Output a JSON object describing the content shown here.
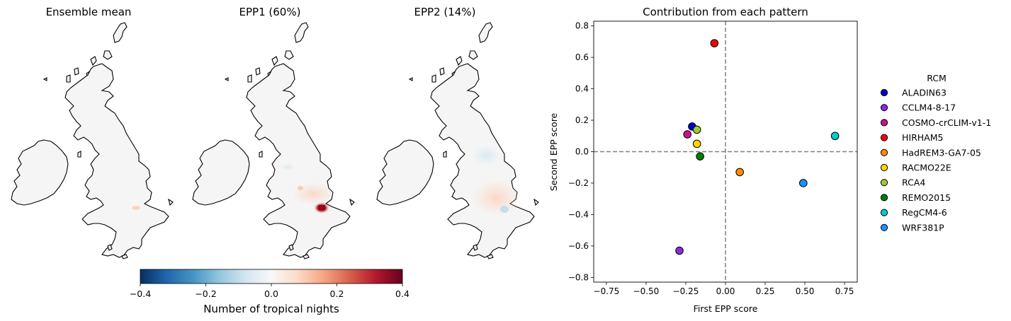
{
  "maps": [
    {
      "title": "Ensemble mean"
    },
    {
      "title": "EPP1 (60%)"
    },
    {
      "title": "EPP2 (14%)"
    }
  ],
  "colorbar": {
    "label": "Number of tropical nights",
    "min": -0.4,
    "max": 0.4,
    "ticks": [
      -0.4,
      -0.2,
      0.0,
      0.2,
      0.4
    ],
    "tick_labels": [
      "−0.4",
      "−0.2",
      "0.0",
      "0.2",
      "0.4"
    ],
    "colormap": "RdBu_r"
  },
  "chart_data": {
    "type": "scatter",
    "title": "Contribution from each pattern",
    "xlabel": "First EPP score",
    "ylabel": "Second EPP score",
    "xlim": [
      -0.83,
      0.83
    ],
    "ylim": [
      -0.83,
      0.83
    ],
    "xticks": [
      -0.75,
      -0.5,
      -0.25,
      0.0,
      0.25,
      0.5,
      0.75
    ],
    "xtick_labels": [
      "−0.75",
      "−0.50",
      "−0.25",
      "0.00",
      "0.25",
      "0.50",
      "0.75"
    ],
    "yticks": [
      -0.8,
      -0.6,
      -0.4,
      -0.2,
      0.0,
      0.2,
      0.4,
      0.6,
      0.8
    ],
    "ytick_labels": [
      "−0.8",
      "−0.6",
      "−0.4",
      "−0.2",
      "0.0",
      "0.2",
      "0.4",
      "0.6",
      "0.8"
    ],
    "reference_lines": {
      "x": 0,
      "y": 0,
      "style": "dashed",
      "color": "#808080"
    },
    "legend": {
      "title": "RCM",
      "placement": "right-outside"
    },
    "series": [
      {
        "name": "ALADIN63",
        "color": "#0000cd",
        "x": -0.21,
        "y": 0.16
      },
      {
        "name": "CCLM4-8-17",
        "color": "#8a2be2",
        "x": -0.29,
        "y": -0.63
      },
      {
        "name": "COSMO-crCLIM-v1-1",
        "color": "#c71585",
        "x": -0.24,
        "y": 0.11
      },
      {
        "name": "HIRHAM5",
        "color": "#ff0000",
        "x": -0.07,
        "y": 0.69
      },
      {
        "name": "HadREM3-GA7-05",
        "color": "#ff8c00",
        "x": 0.09,
        "y": -0.13
      },
      {
        "name": "RACMO22E",
        "color": "#ffd700",
        "x": -0.18,
        "y": 0.05
      },
      {
        "name": "RCA4",
        "color": "#9acd32",
        "x": -0.18,
        "y": 0.14
      },
      {
        "name": "REMO2015",
        "color": "#008000",
        "x": -0.16,
        "y": -0.03
      },
      {
        "name": "RegCM4-6",
        "color": "#00ced1",
        "x": 0.69,
        "y": 0.1
      },
      {
        "name": "WRF381P",
        "color": "#1e90ff",
        "x": 0.49,
        "y": -0.2
      }
    ]
  }
}
